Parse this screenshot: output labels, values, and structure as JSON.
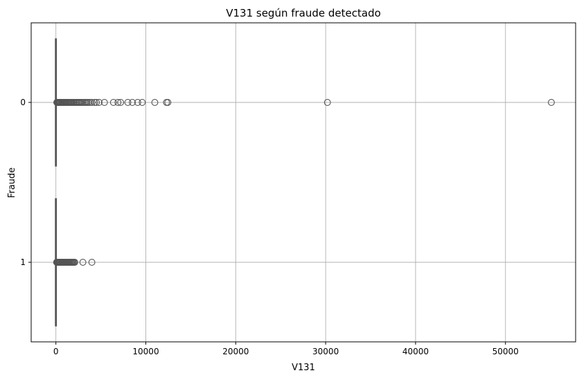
{
  "chart_data": {
    "type": "boxplot",
    "title": "V131 según fraude detectado",
    "xlabel": "V131",
    "ylabel": "Fraude",
    "orientation": "horizontal",
    "xlim": [
      -2750,
      57800
    ],
    "x_ticks": [
      0,
      10000,
      20000,
      30000,
      40000,
      50000
    ],
    "x_tick_labels": [
      "0",
      "10000",
      "20000",
      "30000",
      "40000",
      "50000"
    ],
    "categories": [
      "0",
      "1"
    ],
    "grid": true,
    "series": [
      {
        "category": "0",
        "box": {
          "q1": 0,
          "median": 0,
          "q3": 0,
          "whisker_low": 0,
          "whisker_high": 0
        },
        "outliers": [
          100,
          150,
          200,
          260,
          320,
          380,
          450,
          520,
          600,
          680,
          760,
          850,
          940,
          1030,
          1120,
          1220,
          1320,
          1420,
          1530,
          1640,
          1750,
          1870,
          1990,
          2100,
          2230,
          2350,
          2480,
          2600,
          2730,
          2860,
          3000,
          3150,
          3300,
          3450,
          3600,
          3800,
          4000,
          4300,
          4500,
          4800,
          5400,
          6400,
          6900,
          7200,
          8000,
          8500,
          9100,
          9600,
          11000,
          12300,
          12450,
          30200,
          55100
        ]
      },
      {
        "category": "1",
        "box": {
          "q1": 0,
          "median": 0,
          "q3": 0,
          "whisker_low": 0,
          "whisker_high": 0
        },
        "outliers": [
          80,
          130,
          180,
          240,
          300,
          370,
          440,
          510,
          590,
          670,
          750,
          830,
          920,
          1010,
          1100,
          1190,
          1280,
          1370,
          1460,
          1550,
          1640,
          1730,
          1820,
          1910,
          2000,
          2100,
          3000,
          4000
        ]
      }
    ],
    "colors": {
      "box_edge": "#555555",
      "outlier_edge": "#555555",
      "grid": "#b0b0b0",
      "axes": "#000000"
    }
  }
}
